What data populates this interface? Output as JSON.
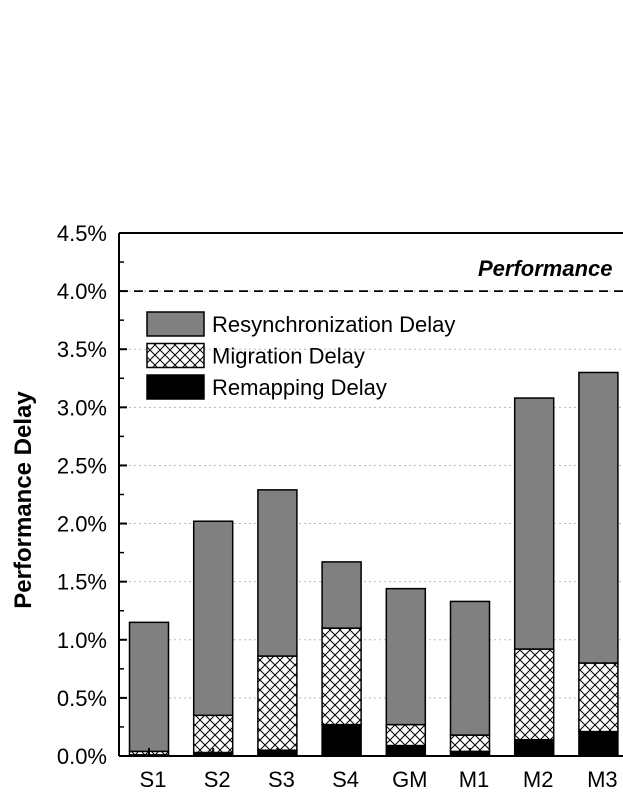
{
  "chart_data": {
    "type": "bar",
    "stacked": true,
    "ylabel": "Performance Delay",
    "ylim": [
      0,
      4.5
    ],
    "yticks": [
      "0.0%",
      "0.5%",
      "1.0%",
      "1.5%",
      "2.0%",
      "2.5%",
      "3.0%",
      "3.5%",
      "4.0%",
      "4.5%"
    ],
    "categories": [
      "S1",
      "S2",
      "S3",
      "S4",
      "GM",
      "M1",
      "M2",
      "M3"
    ],
    "series": [
      {
        "name": "Remapping Delay",
        "fill": "#000000",
        "values": [
          0.01,
          0.03,
          0.05,
          0.27,
          0.09,
          0.04,
          0.14,
          0.21
        ]
      },
      {
        "name": "Migration Delay",
        "fill": "crosshatch",
        "values": [
          0.03,
          0.32,
          0.81,
          0.83,
          0.18,
          0.14,
          0.78,
          0.59
        ]
      },
      {
        "name": "Resynchronization Delay",
        "fill": "#808080",
        "values": [
          1.11,
          1.67,
          1.43,
          0.57,
          1.17,
          1.15,
          2.16,
          2.5
        ]
      }
    ],
    "legend": {
      "placement": "top-left",
      "order": [
        "Resynchronization Delay",
        "Migration Delay",
        "Remapping Delay"
      ]
    },
    "reference_line": {
      "value": 4.0,
      "style": "dashed",
      "label": "Performance"
    },
    "grid": {
      "y": true,
      "style": "dotted"
    }
  }
}
